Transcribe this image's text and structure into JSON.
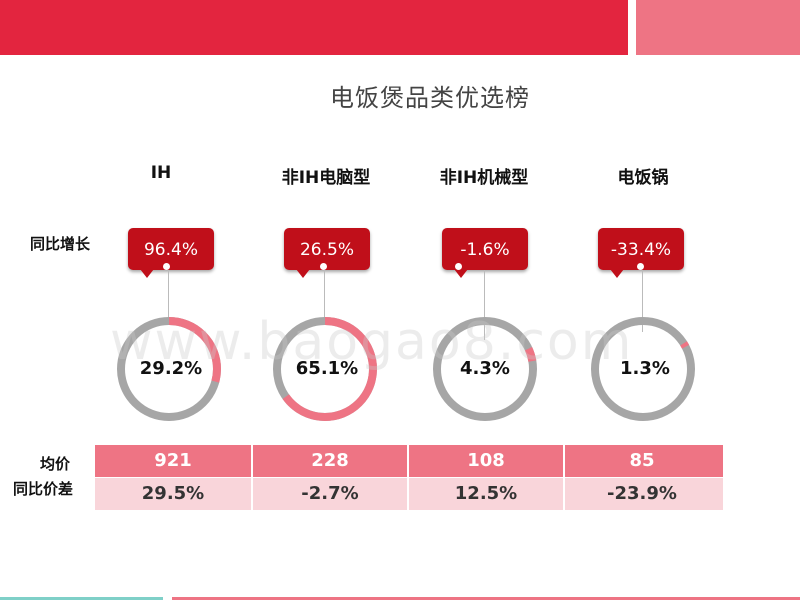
{
  "title": "电饭煲品类优选榜",
  "row_labels": {
    "growth": "同比增长",
    "avg_price": "均价",
    "price_diff": "同比价差"
  },
  "watermark": "www.baogao8.com",
  "colors": {
    "primary": "#e3253f",
    "secondary": "#ee7484",
    "bubble": "#c00f1a",
    "ring_bg": "#a6a6a6",
    "ring_fg": "#ee7484"
  },
  "categories": [
    {
      "name": "IH",
      "growth": "96.4%",
      "share_label": "29.2%",
      "share": 0.292,
      "avg_price": "921",
      "price_diff": "29.5%"
    },
    {
      "name": "非IH电脑型",
      "growth": "26.5%",
      "share_label": "65.1%",
      "share": 0.651,
      "avg_price": "228",
      "price_diff": "-2.7%"
    },
    {
      "name": "非IH机械型",
      "growth": "-1.6%",
      "share_label": "4.3%",
      "share": 0.043,
      "avg_price": "108",
      "price_diff": "12.5%"
    },
    {
      "name": "电饭锅",
      "growth": "-33.4%",
      "share_label": "1.3%",
      "share": 0.013,
      "avg_price": "85",
      "price_diff": "-23.9%"
    }
  ]
}
